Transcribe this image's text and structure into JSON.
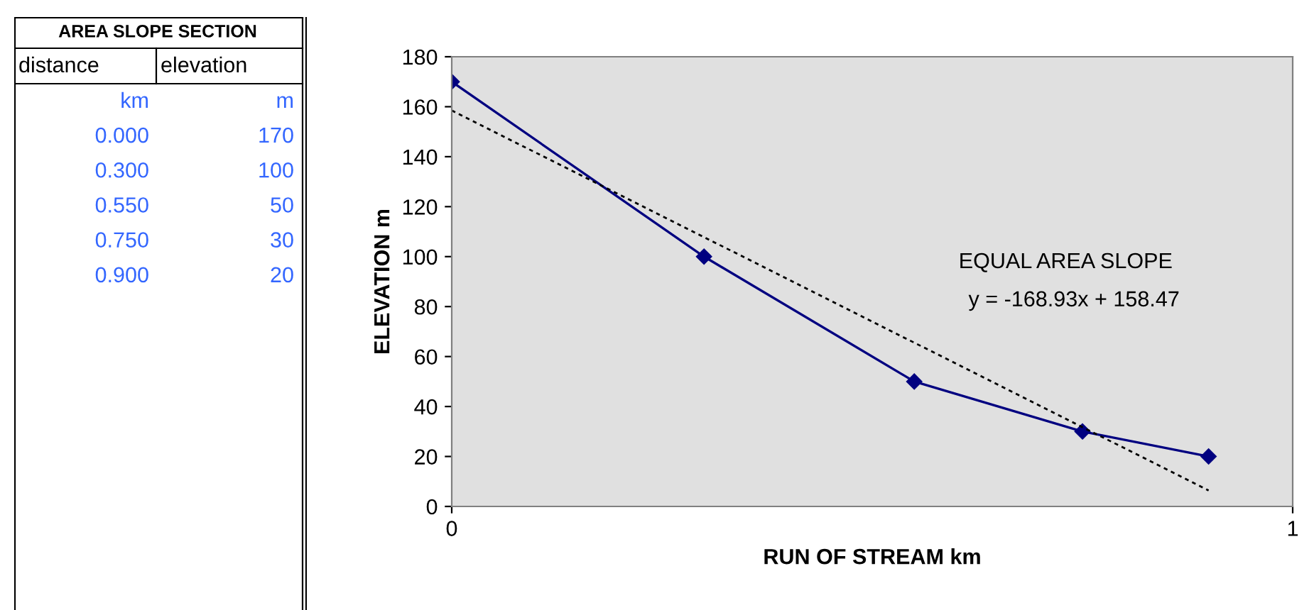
{
  "chart_data": [
    {
      "type": "other",
      "annotations": [
        "AREA SLOPE SECTION",
        "distance",
        "elevation",
        "km",
        "m",
        "0.000",
        "170",
        "0.300",
        "100",
        "0.550",
        "50",
        "0.750",
        "30",
        "0.900",
        "20"
      ]
    },
    {
      "type": "line",
      "xlabel": "RUN OF STREAM km",
      "ylabel": "ELEVATION m",
      "xlim": [
        0,
        1
      ],
      "xticks": [
        0,
        1
      ],
      "ylim": [
        0,
        180
      ],
      "yticks": [
        0,
        20,
        40,
        60,
        80,
        100,
        120,
        140,
        160,
        180
      ],
      "grid": false,
      "legend": false,
      "series": [
        {
          "color": "#000080",
          "marker": "diamond",
          "line_style": "solid",
          "x": [
            0.0,
            0.3,
            0.55,
            0.75,
            0.9
          ],
          "values": [
            170,
            100,
            50,
            30,
            20
          ]
        },
        {
          "type": "line",
          "color": "#000000",
          "marker": "none",
          "line_style": "dotted",
          "x": [
            0,
            0.9
          ],
          "values": [
            158.5,
            6.4
          ]
        }
      ],
      "annotations": [
        "EQUAL AREA SLOPE",
        "y = -168.93x + 158.47"
      ]
    }
  ]
}
